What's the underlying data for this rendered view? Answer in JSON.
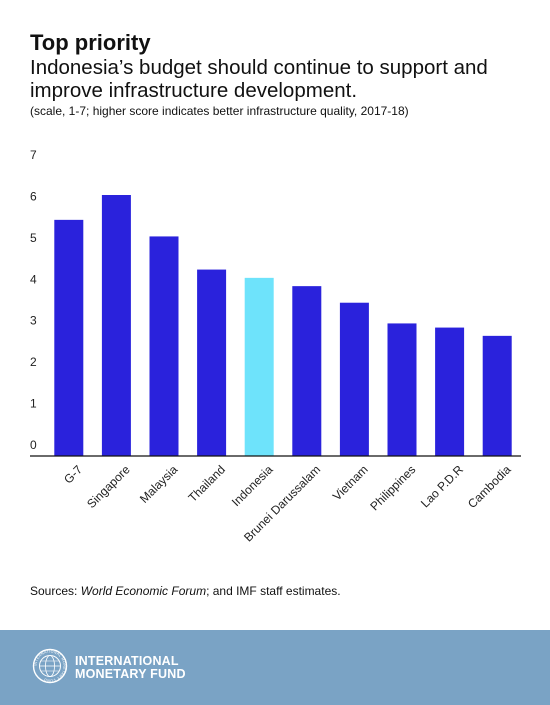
{
  "header": {
    "title": "Top priority",
    "subtitle": "Indonesia’s budget should continue to support and improve infrastructure development.",
    "note": "(scale, 1-7; higher score indicates better infrastructure quality, 2017-18)"
  },
  "chart_data": {
    "type": "bar",
    "categories": [
      "G-7",
      "Singapore",
      "Malaysia",
      "Thailand",
      "Indonesia",
      "Brunei Darussalam",
      "Vietnam",
      "Philippines",
      "Lao P.D.R",
      "Cambodia"
    ],
    "values": [
      5.7,
      6.3,
      5.3,
      4.5,
      4.3,
      4.1,
      3.7,
      3.2,
      3.1,
      2.9
    ],
    "highlight": "Indonesia",
    "ylim": [
      0,
      7
    ],
    "yticks": [
      0,
      1,
      2,
      3,
      4,
      5,
      6,
      7
    ],
    "bar_color": "#2a22dc",
    "highlight_color": "#6ee3fb",
    "grid": false,
    "xlabel": "",
    "ylabel": ""
  },
  "source": {
    "prefix": "Sources: ",
    "emphasis": "World Economic Forum",
    "suffix": "; and IMF staff estimates."
  },
  "footer": {
    "background": "#7aa3c5",
    "logo_icon": "imf-seal-icon",
    "org_line1": "INTERNATIONAL",
    "org_line2": "MONETARY FUND",
    "seal_text": "INTERNATIONAL MONETARY FUND"
  }
}
